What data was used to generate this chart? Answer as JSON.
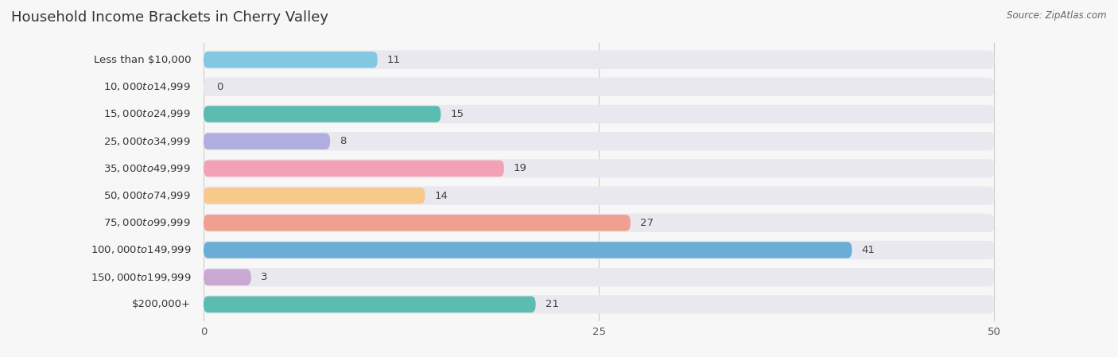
{
  "title": "Household Income Brackets in Cherry Valley",
  "source": "Source: ZipAtlas.com",
  "categories": [
    "Less than $10,000",
    "$10,000 to $14,999",
    "$15,000 to $24,999",
    "$25,000 to $34,999",
    "$35,000 to $49,999",
    "$50,000 to $74,999",
    "$75,000 to $99,999",
    "$100,000 to $149,999",
    "$150,000 to $199,999",
    "$200,000+"
  ],
  "values": [
    11,
    0,
    15,
    8,
    19,
    14,
    27,
    41,
    3,
    21
  ],
  "bar_colors": [
    "#82c8e0",
    "#d4a8c7",
    "#5bbcb0",
    "#b0aee0",
    "#f4a0b5",
    "#f7c98b",
    "#f0a090",
    "#6aaed6",
    "#c9a8d4",
    "#5bbcb0"
  ],
  "background_color": "#f7f7f7",
  "bar_bg_color": "#e8e8ee",
  "data_max": 50,
  "xticks": [
    0,
    25,
    50
  ],
  "title_fontsize": 13,
  "label_fontsize": 9.5,
  "value_fontsize": 9.5,
  "tick_fontsize": 9.5
}
